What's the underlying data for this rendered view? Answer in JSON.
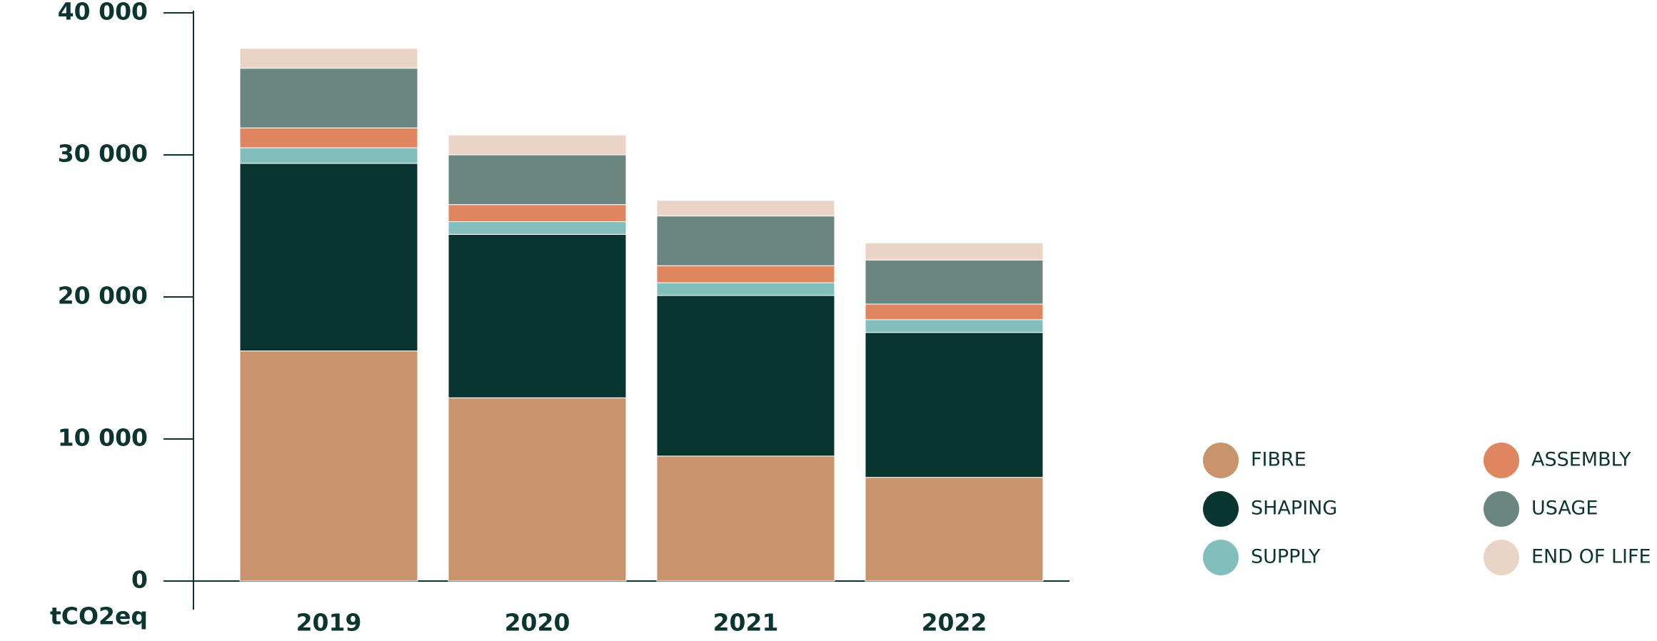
{
  "chart_data": {
    "type": "stacked-bar",
    "y_label": "tCO2eq",
    "categories": [
      "2019",
      "2020",
      "2021",
      "2022"
    ],
    "series": [
      {
        "name": "FIBRE",
        "color": "#c9946c",
        "values": [
          16200,
          12900,
          8800,
          7300
        ]
      },
      {
        "name": "SHAPING",
        "color": "#093531",
        "values": [
          13200,
          11500,
          11300,
          10200
        ]
      },
      {
        "name": "SUPPLY",
        "color": "#82bfbc",
        "values": [
          1100,
          900,
          900,
          900
        ]
      },
      {
        "name": "ASSEMBLY",
        "color": "#df8660",
        "values": [
          1400,
          1200,
          1200,
          1100
        ]
      },
      {
        "name": "USAGE",
        "color": "#6b8680",
        "values": [
          4200,
          3500,
          3500,
          3100
        ]
      },
      {
        "name": "END OF LIFE",
        "color": "#ead4c5",
        "values": [
          1400,
          1400,
          1100,
          1200
        ]
      }
    ],
    "ylim": [
      0,
      40000
    ],
    "yticks": [
      0,
      {
        "value": 10000,
        "label": "10 000"
      },
      {
        "value": 20000,
        "label": "20 000"
      },
      {
        "value": 30000,
        "label": "30 000"
      },
      {
        "value": 40000,
        "label": "40 000"
      }
    ]
  }
}
